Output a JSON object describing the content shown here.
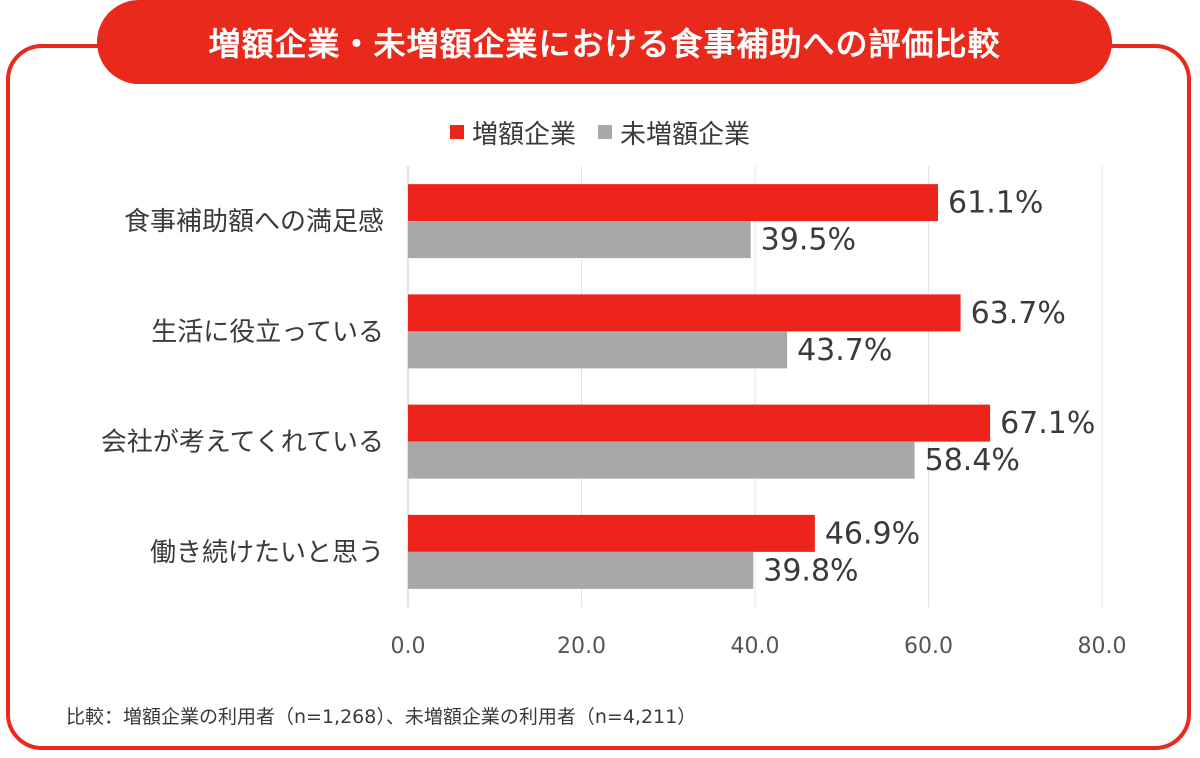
{
  "title": "増額企業・未増額企業における食事補助への評価比較",
  "footnote": "比較：増額企業の利用者（n=1,268）、未増額企業の利用者（n=4,211）",
  "colors": {
    "accent": "#e8291c",
    "bar_series1": "#ee241c",
    "bar_series2": "#a9a7a9"
  },
  "chart_data": {
    "type": "bar",
    "orientation": "horizontal",
    "categories": [
      "食事補助額への満足感",
      "生活に役立っている",
      "会社が考えてくれている",
      "働き続けたいと思う"
    ],
    "series": [
      {
        "name": "増額企業",
        "values": [
          61.1,
          63.7,
          67.1,
          46.9
        ],
        "labels": [
          "61.1%",
          "63.7%",
          "67.1%",
          "46.9%"
        ]
      },
      {
        "name": "未増額企業",
        "values": [
          39.5,
          43.7,
          58.4,
          39.8
        ],
        "labels": [
          "39.5%",
          "43.7%",
          "58.4%",
          "39.8%"
        ]
      }
    ],
    "xlim": [
      0,
      80
    ],
    "xticks": [
      "0.0",
      "20.0",
      "40.0",
      "60.0",
      "80.0"
    ],
    "grid": true,
    "legend_position": "top-center"
  }
}
